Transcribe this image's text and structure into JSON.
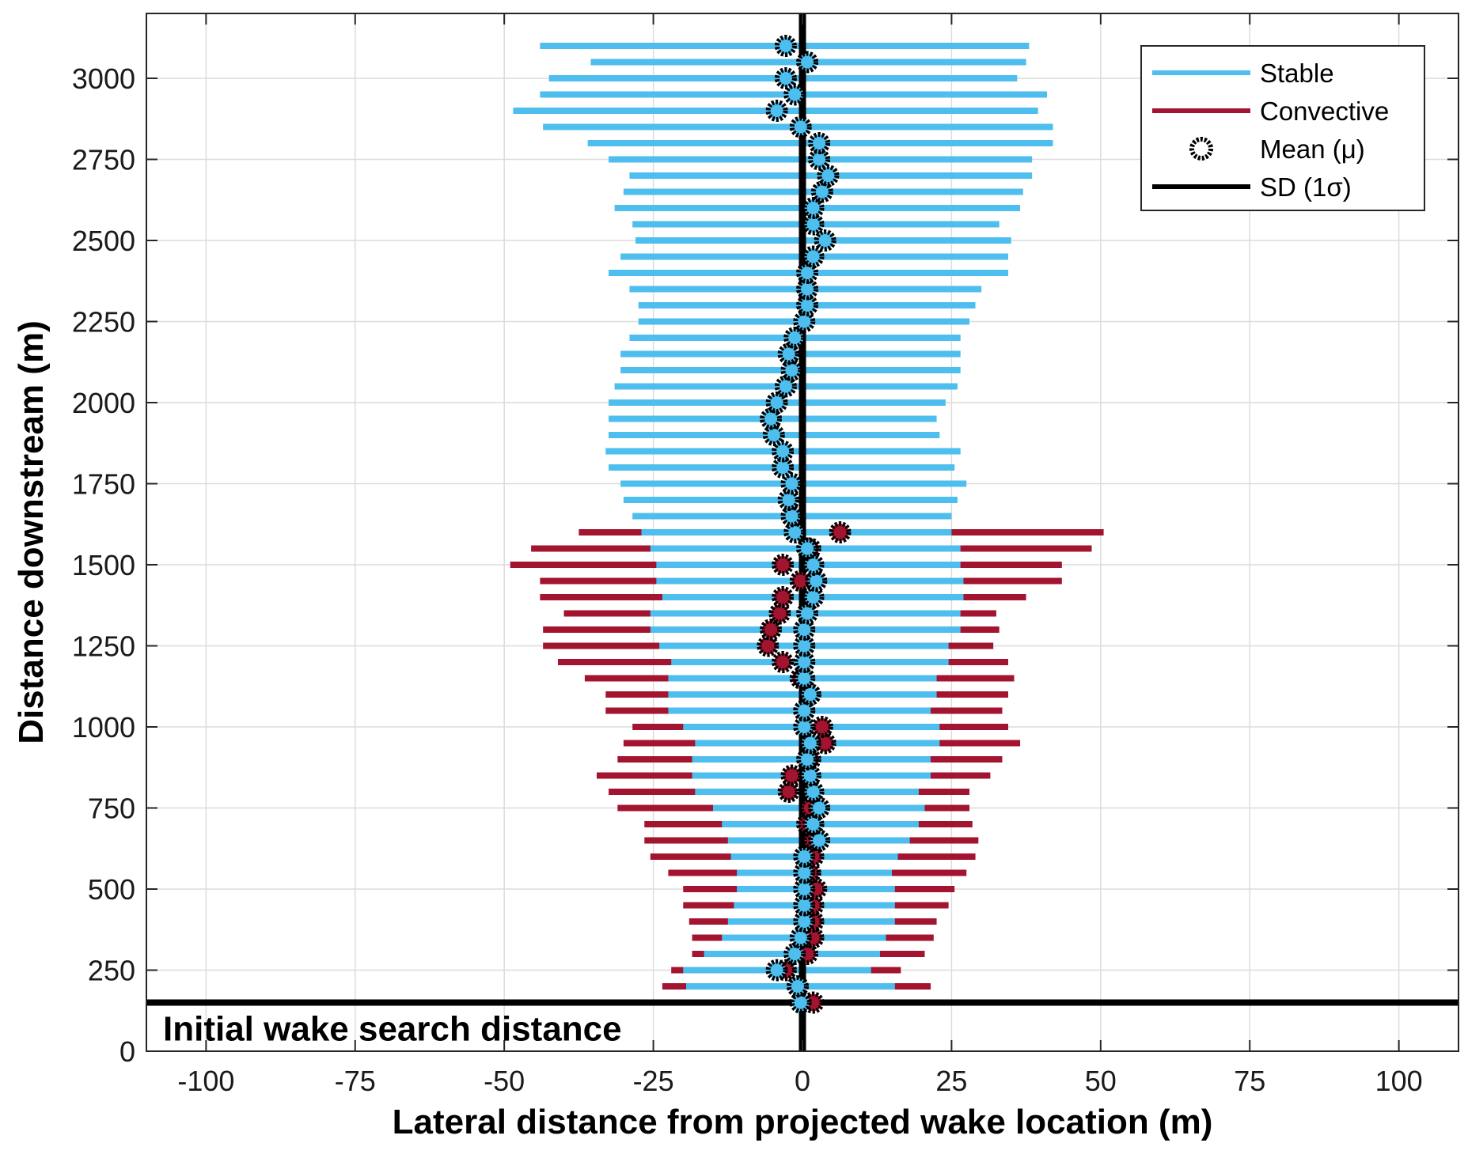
{
  "chart_data": {
    "type": "errorbar",
    "xlabel": "Lateral distance from projected wake location (m)",
    "ylabel": "Distance downstream (m)",
    "xlim": [
      -110,
      110
    ],
    "ylim": [
      0,
      3200
    ],
    "xticks": [
      -100,
      -75,
      -50,
      -25,
      0,
      25,
      50,
      75,
      100
    ],
    "yticks": [
      0,
      250,
      500,
      750,
      1000,
      1250,
      1500,
      1750,
      2000,
      2250,
      2500,
      2750,
      3000
    ],
    "grid": true,
    "legend_position": "top-right",
    "annotation": {
      "text": "Initial wake search distance",
      "y": 150
    },
    "reference_line_x": 0,
    "legend": [
      {
        "label": "Stable",
        "marker": "line",
        "color": "#4DBEEE"
      },
      {
        "label": "Convective",
        "marker": "line",
        "color": "#A2142F"
      },
      {
        "label": "Mean (μ)",
        "marker": "circle"
      },
      {
        "label": "SD (1σ)",
        "marker": "line",
        "color": "#000000"
      }
    ],
    "series": [
      {
        "name": "Convective",
        "color": "#A2142F",
        "points": [
          {
            "y": 150,
            "mean": 1.8,
            "lo": -23.5,
            "hi": 27.5
          },
          {
            "y": 200,
            "mean": -0.8,
            "lo": -23.5,
            "hi": 21.5
          },
          {
            "y": 250,
            "mean": -2.8,
            "lo": -22.0,
            "hi": 16.5
          },
          {
            "y": 300,
            "mean": 0.8,
            "lo": -18.5,
            "hi": 20.5
          },
          {
            "y": 350,
            "mean": 1.8,
            "lo": -18.5,
            "hi": 22.0
          },
          {
            "y": 400,
            "mean": 1.8,
            "lo": -19.0,
            "hi": 22.5
          },
          {
            "y": 450,
            "mean": 1.8,
            "lo": -20.0,
            "hi": 24.5
          },
          {
            "y": 500,
            "mean": 2.3,
            "lo": -20.0,
            "hi": 25.5
          },
          {
            "y": 550,
            "mean": 1.3,
            "lo": -22.5,
            "hi": 27.5
          },
          {
            "y": 600,
            "mean": 1.8,
            "lo": -25.5,
            "hi": 29.0
          },
          {
            "y": 650,
            "mean": 1.8,
            "lo": -26.5,
            "hi": 29.5
          },
          {
            "y": 700,
            "mean": 0.8,
            "lo": -26.5,
            "hi": 28.5
          },
          {
            "y": 750,
            "mean": 1.3,
            "lo": -31.0,
            "hi": 28.0
          },
          {
            "y": 800,
            "mean": -2.3,
            "lo": -32.5,
            "hi": 28.0
          },
          {
            "y": 850,
            "mean": -1.8,
            "lo": -34.5,
            "hi": 31.5
          },
          {
            "y": 900,
            "mean": 1.3,
            "lo": -31.0,
            "hi": 33.5
          },
          {
            "y": 950,
            "mean": 3.8,
            "lo": -30.0,
            "hi": 36.5
          },
          {
            "y": 1000,
            "mean": 3.3,
            "lo": -28.5,
            "hi": 34.5
          },
          {
            "y": 1050,
            "mean": 0.3,
            "lo": -33.0,
            "hi": 33.5
          },
          {
            "y": 1100,
            "mean": 1.3,
            "lo": -33.0,
            "hi": 34.5
          },
          {
            "y": 1150,
            "mean": -0.3,
            "lo": -36.5,
            "hi": 35.5
          },
          {
            "y": 1200,
            "mean": -3.3,
            "lo": -41.0,
            "hi": 34.5
          },
          {
            "y": 1250,
            "mean": -5.8,
            "lo": -43.5,
            "hi": 32.0
          },
          {
            "y": 1300,
            "mean": -5.3,
            "lo": -43.5,
            "hi": 33.0
          },
          {
            "y": 1350,
            "mean": -3.8,
            "lo": -40.0,
            "hi": 32.5
          },
          {
            "y": 1400,
            "mean": -3.3,
            "lo": -44.0,
            "hi": 37.5
          },
          {
            "y": 1450,
            "mean": -0.3,
            "lo": -44.0,
            "hi": 43.5
          },
          {
            "y": 1500,
            "mean": -3.3,
            "lo": -49.0,
            "hi": 43.5
          },
          {
            "y": 1550,
            "mean": 1.3,
            "lo": -45.5,
            "hi": 48.5
          },
          {
            "y": 1600,
            "mean": 6.3,
            "lo": -37.5,
            "hi": 50.5
          }
        ]
      },
      {
        "name": "Stable",
        "color": "#4DBEEE",
        "points": [
          {
            "y": 150,
            "mean": -0.3,
            "lo": -20.5,
            "hi": 19.5
          },
          {
            "y": 200,
            "mean": -0.8,
            "lo": -19.5,
            "hi": 15.5
          },
          {
            "y": 250,
            "mean": -4.3,
            "lo": -20.0,
            "hi": 11.5
          },
          {
            "y": 300,
            "mean": -1.3,
            "lo": -16.5,
            "hi": 13.0
          },
          {
            "y": 350,
            "mean": -0.3,
            "lo": -13.5,
            "hi": 14.0
          },
          {
            "y": 400,
            "mean": 0.3,
            "lo": -12.5,
            "hi": 15.5
          },
          {
            "y": 450,
            "mean": 0.3,
            "lo": -11.5,
            "hi": 15.5
          },
          {
            "y": 500,
            "mean": 0.3,
            "lo": -11.0,
            "hi": 15.5
          },
          {
            "y": 550,
            "mean": 0.3,
            "lo": -11.0,
            "hi": 15.0
          },
          {
            "y": 600,
            "mean": 0.3,
            "lo": -12.0,
            "hi": 16.0
          },
          {
            "y": 650,
            "mean": 2.8,
            "lo": -12.5,
            "hi": 18.0
          },
          {
            "y": 700,
            "mean": 1.8,
            "lo": -13.5,
            "hi": 19.5
          },
          {
            "y": 750,
            "mean": 2.8,
            "lo": -15.0,
            "hi": 20.5
          },
          {
            "y": 800,
            "mean": 1.8,
            "lo": -18.0,
            "hi": 19.5
          },
          {
            "y": 850,
            "mean": 1.3,
            "lo": -18.5,
            "hi": 21.5
          },
          {
            "y": 900,
            "mean": 0.8,
            "lo": -18.5,
            "hi": 21.5
          },
          {
            "y": 950,
            "mean": 1.3,
            "lo": -18.0,
            "hi": 23.0
          },
          {
            "y": 1000,
            "mean": 0.3,
            "lo": -20.0,
            "hi": 23.0
          },
          {
            "y": 1050,
            "mean": 0.3,
            "lo": -22.5,
            "hi": 21.5
          },
          {
            "y": 1100,
            "mean": 1.3,
            "lo": -22.5,
            "hi": 22.5
          },
          {
            "y": 1150,
            "mean": 0.3,
            "lo": -22.5,
            "hi": 22.5
          },
          {
            "y": 1200,
            "mean": 0.3,
            "lo": -22.0,
            "hi": 24.5
          },
          {
            "y": 1250,
            "mean": 0.3,
            "lo": -24.0,
            "hi": 24.5
          },
          {
            "y": 1300,
            "mean": 0.3,
            "lo": -25.5,
            "hi": 26.5
          },
          {
            "y": 1350,
            "mean": 0.8,
            "lo": -25.5,
            "hi": 26.5
          },
          {
            "y": 1400,
            "mean": 1.8,
            "lo": -23.5,
            "hi": 27.0
          },
          {
            "y": 1450,
            "mean": 2.3,
            "lo": -24.5,
            "hi": 27.0
          },
          {
            "y": 1500,
            "mean": 1.8,
            "lo": -24.5,
            "hi": 26.5
          },
          {
            "y": 1550,
            "mean": 0.8,
            "lo": -25.5,
            "hi": 26.5
          },
          {
            "y": 1600,
            "mean": -1.3,
            "lo": -27.0,
            "hi": 25.0
          },
          {
            "y": 1650,
            "mean": -1.8,
            "lo": -28.5,
            "hi": 25.0
          },
          {
            "y": 1700,
            "mean": -2.3,
            "lo": -30.0,
            "hi": 26.0
          },
          {
            "y": 1750,
            "mean": -1.8,
            "lo": -30.5,
            "hi": 27.5
          },
          {
            "y": 1800,
            "mean": -3.3,
            "lo": -32.5,
            "hi": 25.5
          },
          {
            "y": 1850,
            "mean": -3.3,
            "lo": -33.0,
            "hi": 26.5
          },
          {
            "y": 1900,
            "mean": -4.8,
            "lo": -32.5,
            "hi": 23.0
          },
          {
            "y": 1950,
            "mean": -5.3,
            "lo": -32.5,
            "hi": 22.5
          },
          {
            "y": 2000,
            "mean": -4.3,
            "lo": -32.5,
            "hi": 24.0
          },
          {
            "y": 2050,
            "mean": -2.8,
            "lo": -31.5,
            "hi": 26.0
          },
          {
            "y": 2100,
            "mean": -1.8,
            "lo": -30.5,
            "hi": 26.5
          },
          {
            "y": 2150,
            "mean": -2.3,
            "lo": -30.5,
            "hi": 26.5
          },
          {
            "y": 2200,
            "mean": -1.3,
            "lo": -29.0,
            "hi": 26.5
          },
          {
            "y": 2250,
            "mean": 0.3,
            "lo": -27.5,
            "hi": 28.0
          },
          {
            "y": 2300,
            "mean": 0.8,
            "lo": -27.5,
            "hi": 29.0
          },
          {
            "y": 2350,
            "mean": 0.8,
            "lo": -29.0,
            "hi": 30.0
          },
          {
            "y": 2400,
            "mean": 0.8,
            "lo": -32.5,
            "hi": 34.5
          },
          {
            "y": 2450,
            "mean": 1.8,
            "lo": -30.5,
            "hi": 34.5
          },
          {
            "y": 2500,
            "mean": 3.8,
            "lo": -28.0,
            "hi": 35.0
          },
          {
            "y": 2550,
            "mean": 1.8,
            "lo": -28.5,
            "hi": 33.0
          },
          {
            "y": 2600,
            "mean": 1.8,
            "lo": -31.5,
            "hi": 36.5
          },
          {
            "y": 2650,
            "mean": 3.3,
            "lo": -30.0,
            "hi": 37.0
          },
          {
            "y": 2700,
            "mean": 4.3,
            "lo": -29.0,
            "hi": 38.5
          },
          {
            "y": 2750,
            "mean": 2.8,
            "lo": -32.5,
            "hi": 38.5
          },
          {
            "y": 2800,
            "mean": 2.8,
            "lo": -36.0,
            "hi": 42.0
          },
          {
            "y": 2850,
            "mean": -0.3,
            "lo": -43.5,
            "hi": 42.0
          },
          {
            "y": 2900,
            "mean": -4.3,
            "lo": -48.5,
            "hi": 39.5
          },
          {
            "y": 2950,
            "mean": -1.3,
            "lo": -44.0,
            "hi": 41.0
          },
          {
            "y": 3000,
            "mean": -2.8,
            "lo": -42.5,
            "hi": 36.0
          },
          {
            "y": 3050,
            "mean": 0.8,
            "lo": -35.5,
            "hi": 37.5
          },
          {
            "y": 3100,
            "mean": -2.8,
            "lo": -44.0,
            "hi": 38.0
          }
        ]
      }
    ]
  }
}
